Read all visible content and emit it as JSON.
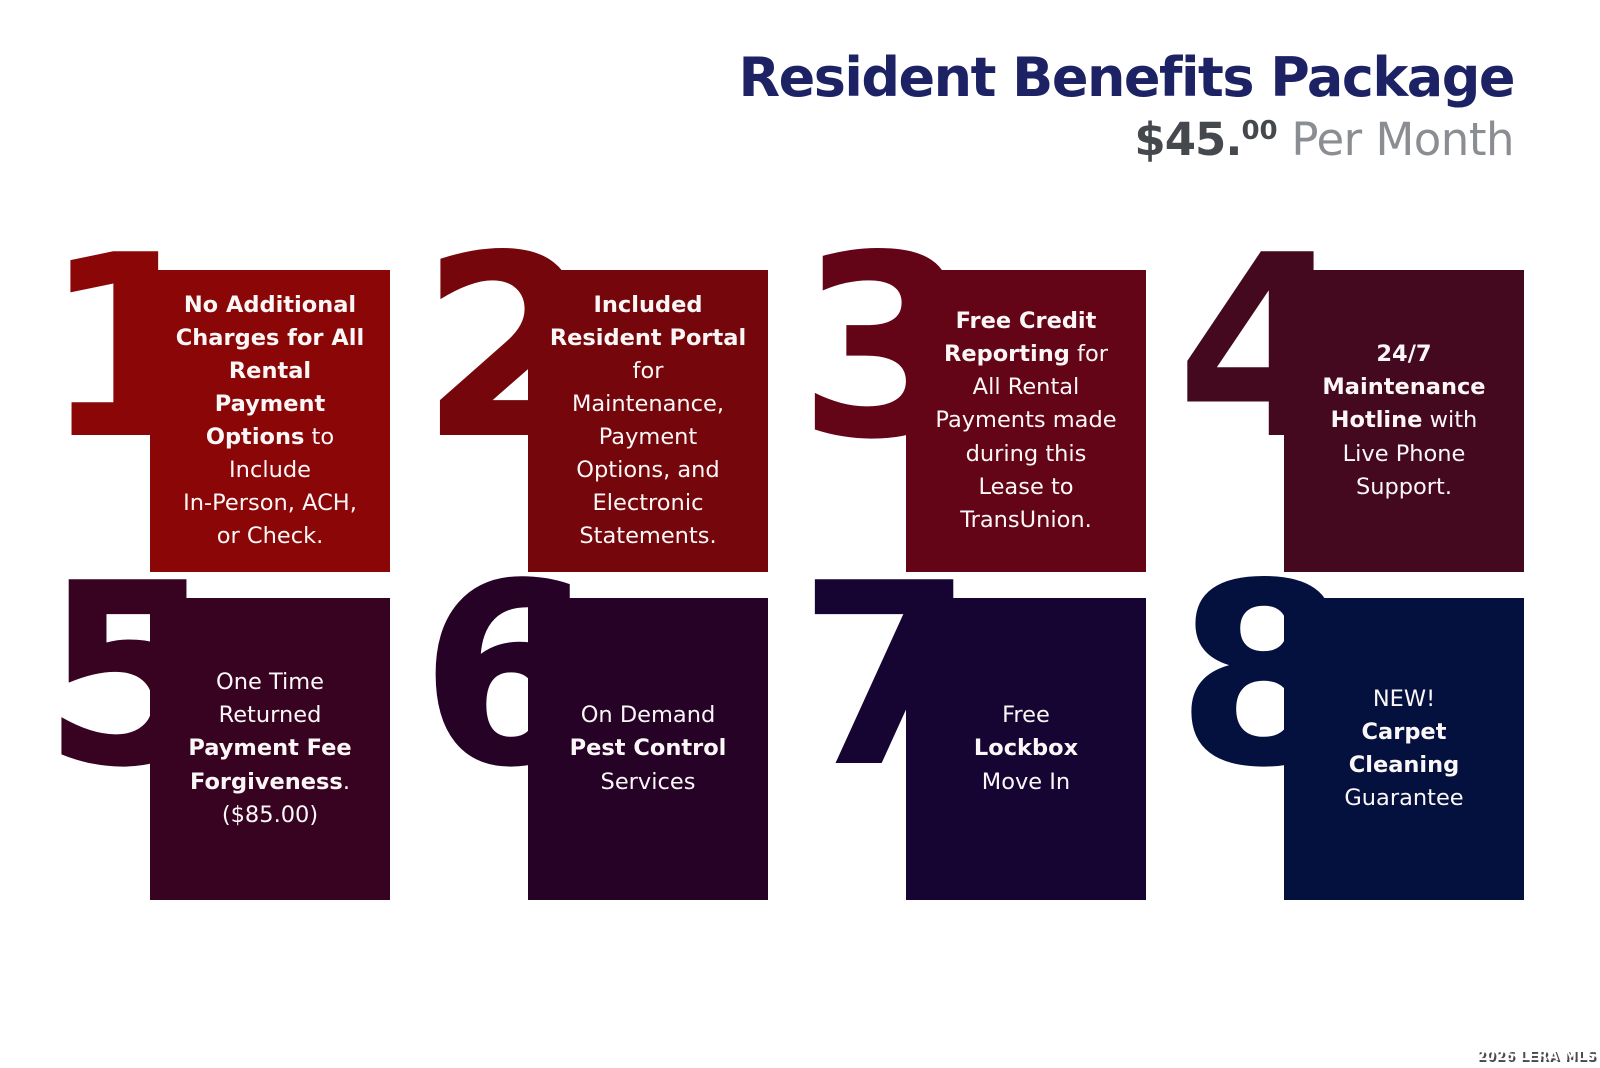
{
  "header": {
    "title": "Resident Benefits Package",
    "price_amount": "$45.",
    "price_cents": "00",
    "price_suffix": " Per Month",
    "title_color": "#1c2264",
    "price_color": "#45484c",
    "suffix_color": "#8a8d91"
  },
  "watermark": "2026 LERA MLS",
  "cards": [
    {
      "number": "1",
      "color": "#8A0607",
      "lines": [
        [
          {
            "t": "No Additional",
            "b": true
          }
        ],
        [
          {
            "t": "Charges for All",
            "b": true
          }
        ],
        [
          {
            "t": "Rental",
            "b": true
          }
        ],
        [
          {
            "t": "Payment",
            "b": true
          }
        ],
        [
          {
            "t": "Options",
            "b": true
          },
          {
            "t": " to",
            "b": false
          }
        ],
        [
          {
            "t": "Include",
            "b": false
          }
        ],
        [
          {
            "t": "In-Person, ACH,",
            "b": false
          }
        ],
        [
          {
            "t": "or Check.",
            "b": false
          }
        ]
      ]
    },
    {
      "number": "2",
      "color": "#75060C",
      "lines": [
        [
          {
            "t": "Included",
            "b": true
          }
        ],
        [
          {
            "t": "Resident Portal",
            "b": true
          }
        ],
        [
          {
            "t": "for",
            "b": false
          }
        ],
        [
          {
            "t": "Maintenance,",
            "b": false
          }
        ],
        [
          {
            "t": "Payment",
            "b": false
          }
        ],
        [
          {
            "t": "Options, and",
            "b": false
          }
        ],
        [
          {
            "t": "Electronic",
            "b": false
          }
        ],
        [
          {
            "t": "Statements.",
            "b": false
          }
        ]
      ]
    },
    {
      "number": "3",
      "color": "#630516",
      "lines": [
        [
          {
            "t": "Free Credit",
            "b": true
          }
        ],
        [
          {
            "t": "Reporting",
            "b": true
          },
          {
            "t": " for",
            "b": false
          }
        ],
        [
          {
            "t": "All Rental",
            "b": false
          }
        ],
        [
          {
            "t": "Payments made",
            "b": false
          }
        ],
        [
          {
            "t": "during this",
            "b": false
          }
        ],
        [
          {
            "t": "Lease to",
            "b": false
          }
        ],
        [
          {
            "t": "TransUnion.",
            "b": false
          }
        ]
      ]
    },
    {
      "number": "4",
      "color": "#44081F",
      "lines": [
        [
          {
            "t": "24/7",
            "b": true
          }
        ],
        [
          {
            "t": "Maintenance",
            "b": true
          }
        ],
        [
          {
            "t": "Hotline",
            "b": true
          },
          {
            "t": " with",
            "b": false
          }
        ],
        [
          {
            "t": "Live Phone",
            "b": false
          }
        ],
        [
          {
            "t": "Support.",
            "b": false
          }
        ]
      ]
    },
    {
      "number": "5",
      "color": "#380321",
      "lines": [
        [
          {
            "t": "One Time",
            "b": false
          }
        ],
        [
          {
            "t": "Returned",
            "b": false
          }
        ],
        [
          {
            "t": "Payment Fee",
            "b": true
          }
        ],
        [
          {
            "t": "Forgiveness",
            "b": true
          },
          {
            "t": ".",
            "b": false
          }
        ],
        [
          {
            "t": "($85.00)",
            "b": false
          }
        ]
      ]
    },
    {
      "number": "6",
      "color": "#260326",
      "lines": [
        [
          {
            "t": "On Demand",
            "b": false
          }
        ],
        [
          {
            "t": "Pest Control",
            "b": true
          }
        ],
        [
          {
            "t": "Services",
            "b": false
          }
        ]
      ]
    },
    {
      "number": "7",
      "color": "#160533",
      "lines": [
        [
          {
            "t": "Free",
            "b": false
          }
        ],
        [
          {
            "t": "Lockbox",
            "b": true
          }
        ],
        [
          {
            "t": "Move In",
            "b": false
          }
        ]
      ]
    },
    {
      "number": "8",
      "color": "#04103E",
      "lines": [
        [
          {
            "t": "NEW!",
            "b": false
          }
        ],
        [
          {
            "t": "Carpet",
            "b": true
          }
        ],
        [
          {
            "t": "Cleaning",
            "b": true
          }
        ],
        [
          {
            "t": "Guarantee",
            "b": false
          }
        ]
      ]
    }
  ]
}
